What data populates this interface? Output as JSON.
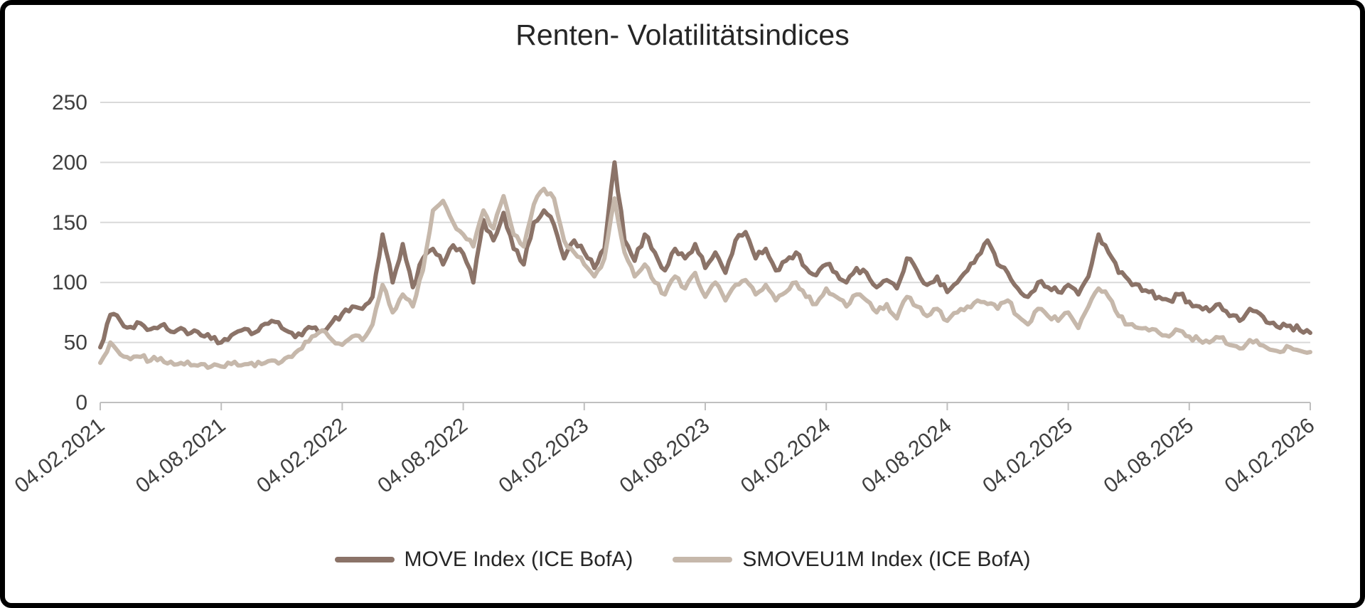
{
  "frame": {
    "background": "#ffffff",
    "border_color": "#000000"
  },
  "chart_data": {
    "type": "line",
    "title": "Renten- Volatilitätsindices",
    "title_color": "#262626",
    "label_color": "#404040",
    "gridline_color": "#d9d9d9",
    "axis_color": "#bfbfbf",
    "grid": "horizontal",
    "legend_position": "bottom",
    "ylim": [
      0,
      250
    ],
    "y_ticks": [
      0,
      50,
      100,
      150,
      200,
      250
    ],
    "x_start": "04.02.2021",
    "x_end": "04.02.2026",
    "x_tick_labels": [
      "04.02.2021",
      "04.08.2021",
      "04.02.2022",
      "04.08.2022",
      "04.02.2023",
      "04.08.2023",
      "04.02.2024",
      "04.08.2024",
      "04.02.2025",
      "04.08.2025",
      "04.02.2026"
    ],
    "series": [
      {
        "name": "MOVE Index (ICE BofA)",
        "color": "#8b7368",
        "stroke_width": 6,
        "jitter": 3,
        "values": [
          46,
          73,
          68,
          63,
          66,
          61,
          64,
          59,
          62,
          58,
          56,
          53,
          50,
          56,
          60,
          57,
          64,
          68,
          62,
          58,
          56,
          62,
          60,
          67,
          74,
          80,
          78,
          88,
          140,
          100,
          132,
          96,
          120,
          128,
          115,
          131,
          124,
          100,
          152,
          135,
          158,
          128,
          115,
          150,
          160,
          148,
          120,
          135,
          125,
          112,
          128,
          200,
          135,
          118,
          140,
          125,
          110,
          128,
          120,
          132,
          112,
          125,
          108,
          135,
          142,
          120,
          128,
          110,
          118,
          125,
          112,
          106,
          115,
          108,
          100,
          112,
          108,
          96,
          102,
          95,
          120,
          110,
          98,
          105,
          92,
          100,
          110,
          122,
          135,
          115,
          108,
          95,
          88,
          100,
          96,
          92,
          98,
          90,
          105,
          140,
          125,
          108,
          102,
          98,
          92,
          88,
          85,
          90,
          84,
          80,
          76,
          82,
          72,
          68,
          78,
          74,
          66,
          62,
          64,
          60,
          58
        ]
      },
      {
        "name": "SMOVEU1M Index (ICE BofA)",
        "color": "#c6b8ab",
        "stroke_width": 6,
        "jitter": 2.5,
        "values": [
          33,
          50,
          40,
          36,
          38,
          35,
          37,
          34,
          33,
          31,
          32,
          30,
          30,
          32,
          31,
          33,
          32,
          35,
          34,
          38,
          45,
          55,
          60,
          52,
          48,
          55,
          52,
          65,
          98,
          75,
          90,
          80,
          110,
          160,
          168,
          150,
          140,
          130,
          160,
          145,
          172,
          140,
          130,
          165,
          178,
          170,
          135,
          125,
          115,
          105,
          120,
          170,
          125,
          105,
          115,
          100,
          90,
          105,
          95,
          108,
          88,
          100,
          85,
          98,
          102,
          90,
          98,
          85,
          92,
          100,
          88,
          82,
          95,
          88,
          80,
          90,
          85,
          75,
          82,
          70,
          88,
          80,
          72,
          78,
          68,
          75,
          80,
          85,
          82,
          78,
          85,
          72,
          65,
          78,
          72,
          68,
          75,
          62,
          80,
          95,
          88,
          72,
          65,
          62,
          60,
          58,
          55,
          60,
          55,
          52,
          50,
          54,
          48,
          45,
          52,
          48,
          44,
          42,
          46,
          43,
          42
        ]
      }
    ]
  }
}
